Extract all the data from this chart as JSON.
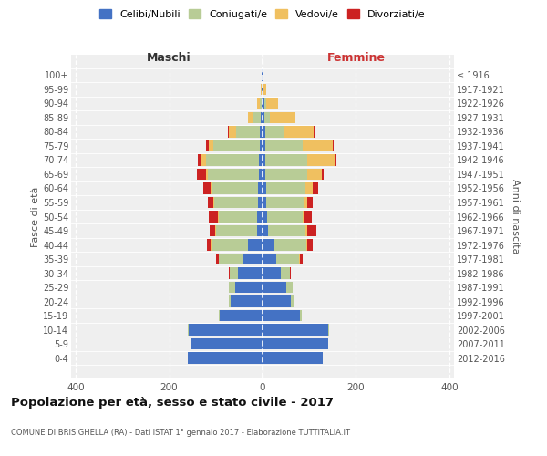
{
  "age_groups": [
    "0-4",
    "5-9",
    "10-14",
    "15-19",
    "20-24",
    "25-29",
    "30-34",
    "35-39",
    "40-44",
    "45-49",
    "50-54",
    "55-59",
    "60-64",
    "65-69",
    "70-74",
    "75-79",
    "80-84",
    "85-89",
    "90-94",
    "95-99",
    "100+"
  ],
  "birth_years": [
    "2012-2016",
    "2007-2011",
    "2002-2006",
    "1997-2001",
    "1992-1996",
    "1987-1991",
    "1982-1986",
    "1977-1981",
    "1972-1976",
    "1967-1971",
    "1962-1966",
    "1957-1961",
    "1952-1956",
    "1947-1951",
    "1942-1946",
    "1937-1941",
    "1932-1936",
    "1927-1931",
    "1922-1926",
    "1917-1921",
    "≤ 1916"
  ],
  "male_celibi": [
    160,
    152,
    158,
    92,
    68,
    58,
    52,
    42,
    32,
    12,
    12,
    9,
    9,
    8,
    7,
    6,
    5,
    3,
    2,
    1,
    1
  ],
  "male_coniugati": [
    0,
    0,
    2,
    2,
    4,
    14,
    18,
    52,
    78,
    88,
    82,
    95,
    100,
    110,
    115,
    100,
    52,
    18,
    4,
    0,
    0
  ],
  "male_vedovi": [
    0,
    0,
    0,
    0,
    0,
    0,
    0,
    0,
    2,
    2,
    2,
    2,
    3,
    3,
    8,
    10,
    15,
    10,
    5,
    2,
    0
  ],
  "male_divorziati": [
    0,
    0,
    0,
    0,
    0,
    0,
    2,
    5,
    8,
    12,
    20,
    12,
    15,
    20,
    8,
    5,
    2,
    0,
    0,
    0,
    0
  ],
  "female_nubili": [
    128,
    140,
    140,
    80,
    60,
    50,
    40,
    30,
    25,
    12,
    10,
    8,
    7,
    6,
    5,
    5,
    5,
    4,
    3,
    2,
    1
  ],
  "female_coniugate": [
    0,
    0,
    2,
    3,
    8,
    14,
    18,
    48,
    68,
    80,
    75,
    80,
    85,
    90,
    90,
    80,
    40,
    12,
    5,
    0,
    0
  ],
  "female_vedove": [
    0,
    0,
    0,
    0,
    0,
    0,
    0,
    2,
    2,
    3,
    5,
    8,
    15,
    30,
    60,
    65,
    65,
    55,
    25,
    5,
    0
  ],
  "female_divorziate": [
    0,
    0,
    0,
    0,
    0,
    0,
    2,
    5,
    12,
    20,
    15,
    12,
    12,
    5,
    3,
    2,
    2,
    0,
    0,
    0,
    0
  ],
  "colors": {
    "celibi": "#4472C4",
    "coniugati": "#b8cc96",
    "vedovi": "#f0c060",
    "divorziati": "#cc2222"
  },
  "legend_labels": [
    "Celibi/Nubili",
    "Coniugati/e",
    "Vedovi/e",
    "Divorziati/e"
  ],
  "title": "Popolazione per età, sesso e stato civile - 2017",
  "subtitle": "COMUNE DI BRISIGHELLA (RA) - Dati ISTAT 1° gennaio 2017 - Elaborazione TUTTITALIA.IT",
  "label_maschi": "Maschi",
  "label_femmine": "Femmine",
  "ylabel_left": "Fasce di età",
  "ylabel_right": "Anni di nascita",
  "xlim": 410,
  "bg_color": "#efefef"
}
